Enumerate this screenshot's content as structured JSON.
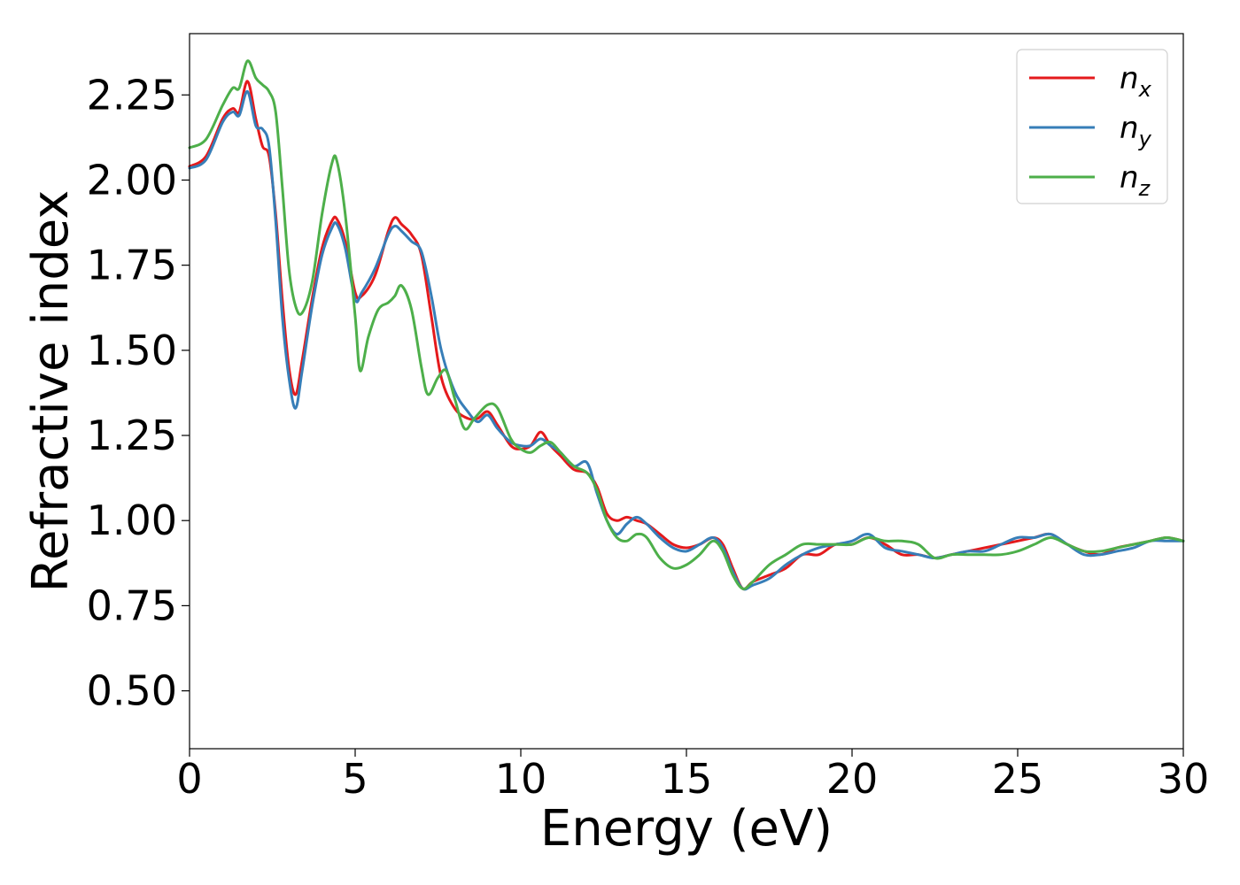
{
  "chart_data": {
    "type": "line",
    "title": "",
    "xlabel": "Energy (eV)",
    "ylabel": "Refractive index",
    "xlim": [
      0,
      30
    ],
    "ylim": [
      0.33,
      2.43
    ],
    "xticks": [
      0,
      5,
      10,
      15,
      20,
      25,
      30
    ],
    "xtick_labels": [
      "0",
      "5",
      "10",
      "15",
      "20",
      "25",
      "30"
    ],
    "yticks": [
      0.5,
      0.75,
      1.0,
      1.25,
      1.5,
      1.75,
      2.0,
      2.25
    ],
    "ytick_labels": [
      "0.50",
      "0.75",
      "1.00",
      "1.25",
      "1.50",
      "1.75",
      "2.00",
      "2.25"
    ],
    "grid": false,
    "legend_position": "top-right",
    "series": [
      {
        "name": "n",
        "subscript": "x",
        "color": "#e41a1c",
        "x": [
          0,
          0.5,
          1.0,
          1.3,
          1.5,
          1.75,
          2.0,
          2.2,
          2.4,
          2.6,
          2.8,
          3.0,
          3.2,
          3.4,
          3.7,
          4.0,
          4.3,
          4.45,
          4.7,
          5.0,
          5.2,
          5.6,
          6.0,
          6.2,
          6.4,
          6.7,
          7.0,
          7.3,
          7.6,
          8.0,
          8.4,
          8.7,
          9.0,
          9.3,
          9.7,
          10.0,
          10.3,
          10.6,
          10.9,
          11.2,
          11.6,
          12.0,
          12.3,
          12.6,
          12.9,
          13.2,
          13.5,
          13.8,
          14.2,
          14.6,
          15.0,
          15.4,
          15.8,
          16.1,
          16.4,
          16.7,
          17.0,
          17.5,
          18.0,
          18.5,
          19.0,
          19.5,
          20.0,
          20.5,
          21.0,
          21.5,
          22.0,
          22.5,
          23.0,
          23.5,
          24.0,
          24.5,
          25.0,
          25.5,
          26.0,
          26.5,
          27.0,
          27.5,
          28.0,
          28.5,
          29.0,
          29.5,
          30.0
        ],
        "y": [
          2.04,
          2.07,
          2.18,
          2.21,
          2.2,
          2.29,
          2.18,
          2.1,
          2.07,
          1.9,
          1.65,
          1.45,
          1.37,
          1.47,
          1.65,
          1.8,
          1.88,
          1.885,
          1.82,
          1.67,
          1.66,
          1.72,
          1.85,
          1.89,
          1.87,
          1.84,
          1.78,
          1.6,
          1.42,
          1.33,
          1.3,
          1.3,
          1.32,
          1.28,
          1.22,
          1.21,
          1.22,
          1.26,
          1.22,
          1.19,
          1.15,
          1.14,
          1.1,
          1.02,
          1.0,
          1.01,
          1.0,
          0.99,
          0.96,
          0.93,
          0.92,
          0.93,
          0.95,
          0.93,
          0.86,
          0.8,
          0.82,
          0.84,
          0.86,
          0.9,
          0.9,
          0.93,
          0.93,
          0.95,
          0.93,
          0.9,
          0.9,
          0.89,
          0.9,
          0.91,
          0.92,
          0.93,
          0.94,
          0.95,
          0.96,
          0.93,
          0.91,
          0.9,
          0.92,
          0.93,
          0.94,
          0.95,
          0.94
        ]
      },
      {
        "name": "n",
        "subscript": "y",
        "color": "#377eb8",
        "x": [
          0,
          0.5,
          1.0,
          1.3,
          1.5,
          1.75,
          2.0,
          2.2,
          2.4,
          2.6,
          2.8,
          3.0,
          3.2,
          3.4,
          3.7,
          4.0,
          4.3,
          4.45,
          4.7,
          5.0,
          5.2,
          5.6,
          6.0,
          6.2,
          6.4,
          6.7,
          7.0,
          7.3,
          7.6,
          8.0,
          8.4,
          8.7,
          9.0,
          9.3,
          9.7,
          10.0,
          10.3,
          10.6,
          10.9,
          11.2,
          11.6,
          12.0,
          12.3,
          12.6,
          12.9,
          13.2,
          13.5,
          13.8,
          14.2,
          14.6,
          15.0,
          15.4,
          15.8,
          16.1,
          16.4,
          16.7,
          17.0,
          17.5,
          18.0,
          18.5,
          19.0,
          19.5,
          20.0,
          20.5,
          21.0,
          21.5,
          22.0,
          22.5,
          23.0,
          23.5,
          24.0,
          24.5,
          25.0,
          25.5,
          26.0,
          26.5,
          27.0,
          27.5,
          28.0,
          28.5,
          29.0,
          29.5,
          30.0
        ],
        "y": [
          2.035,
          2.06,
          2.17,
          2.2,
          2.19,
          2.26,
          2.16,
          2.15,
          2.1,
          1.88,
          1.6,
          1.42,
          1.33,
          1.44,
          1.63,
          1.78,
          1.86,
          1.87,
          1.8,
          1.65,
          1.67,
          1.74,
          1.84,
          1.865,
          1.85,
          1.82,
          1.79,
          1.66,
          1.5,
          1.38,
          1.32,
          1.29,
          1.31,
          1.27,
          1.23,
          1.22,
          1.22,
          1.24,
          1.22,
          1.2,
          1.16,
          1.17,
          1.08,
          1.0,
          0.96,
          0.99,
          1.01,
          0.99,
          0.95,
          0.92,
          0.91,
          0.93,
          0.95,
          0.92,
          0.85,
          0.8,
          0.81,
          0.83,
          0.87,
          0.9,
          0.92,
          0.93,
          0.94,
          0.96,
          0.92,
          0.91,
          0.9,
          0.89,
          0.9,
          0.91,
          0.91,
          0.93,
          0.95,
          0.95,
          0.96,
          0.93,
          0.9,
          0.9,
          0.91,
          0.92,
          0.94,
          0.94,
          0.94
        ]
      },
      {
        "name": "n",
        "subscript": "z",
        "color": "#4daf4a",
        "x": [
          0,
          0.5,
          1.0,
          1.3,
          1.5,
          1.75,
          2.0,
          2.2,
          2.4,
          2.6,
          2.8,
          3.0,
          3.2,
          3.4,
          3.7,
          4.0,
          4.3,
          4.45,
          4.7,
          5.0,
          5.15,
          5.4,
          5.7,
          6.0,
          6.2,
          6.4,
          6.7,
          7.0,
          7.2,
          7.5,
          7.75,
          8.0,
          8.3,
          8.6,
          9.0,
          9.3,
          9.7,
          10.0,
          10.3,
          10.6,
          10.9,
          11.2,
          11.6,
          12.0,
          12.3,
          12.6,
          12.9,
          13.2,
          13.5,
          13.8,
          14.2,
          14.6,
          15.0,
          15.4,
          15.8,
          16.1,
          16.4,
          16.7,
          17.0,
          17.5,
          18.0,
          18.5,
          19.0,
          19.5,
          20.0,
          20.5,
          21.0,
          21.5,
          22.0,
          22.5,
          23.0,
          23.5,
          24.0,
          24.5,
          25.0,
          25.5,
          26.0,
          26.5,
          27.0,
          27.5,
          28.0,
          28.5,
          29.0,
          29.5,
          30.0
        ],
        "y": [
          2.095,
          2.12,
          2.22,
          2.27,
          2.27,
          2.35,
          2.3,
          2.28,
          2.26,
          2.2,
          1.98,
          1.74,
          1.63,
          1.61,
          1.7,
          1.9,
          2.05,
          2.055,
          1.9,
          1.6,
          1.44,
          1.54,
          1.62,
          1.64,
          1.66,
          1.69,
          1.62,
          1.45,
          1.37,
          1.42,
          1.44,
          1.36,
          1.27,
          1.3,
          1.34,
          1.33,
          1.24,
          1.21,
          1.2,
          1.22,
          1.23,
          1.2,
          1.16,
          1.14,
          1.09,
          1.0,
          0.95,
          0.94,
          0.96,
          0.95,
          0.89,
          0.86,
          0.87,
          0.9,
          0.94,
          0.91,
          0.84,
          0.8,
          0.82,
          0.87,
          0.9,
          0.93,
          0.93,
          0.93,
          0.93,
          0.95,
          0.94,
          0.94,
          0.93,
          0.89,
          0.9,
          0.9,
          0.9,
          0.9,
          0.91,
          0.93,
          0.95,
          0.93,
          0.91,
          0.91,
          0.92,
          0.93,
          0.94,
          0.95,
          0.94
        ]
      }
    ]
  }
}
